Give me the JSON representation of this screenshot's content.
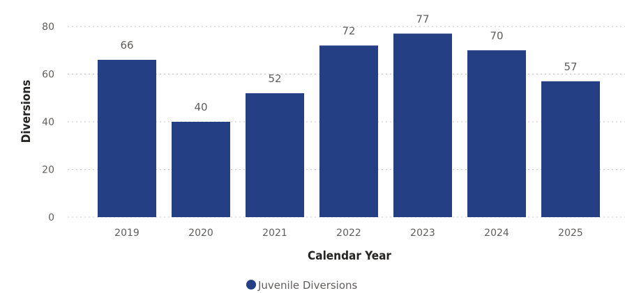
{
  "chart_data": {
    "type": "bar",
    "categories": [
      "2019",
      "2020",
      "2021",
      "2022",
      "2023",
      "2024",
      "2025"
    ],
    "series": [
      {
        "name": "Juvenile Diversions",
        "values": [
          66,
          40,
          52,
          72,
          77,
          70,
          57
        ]
      }
    ],
    "data_labels": [
      "66",
      "40",
      "52",
      "72",
      "77",
      "70",
      "57"
    ],
    "y_ticks": [
      "0",
      "20",
      "40",
      "60",
      "80"
    ],
    "xlabel": "Calendar Year",
    "ylabel": "Diversions",
    "ylim": [
      0,
      80
    ],
    "grid": true,
    "legend_position": "bottom-center",
    "bar_color": "#243f84"
  }
}
